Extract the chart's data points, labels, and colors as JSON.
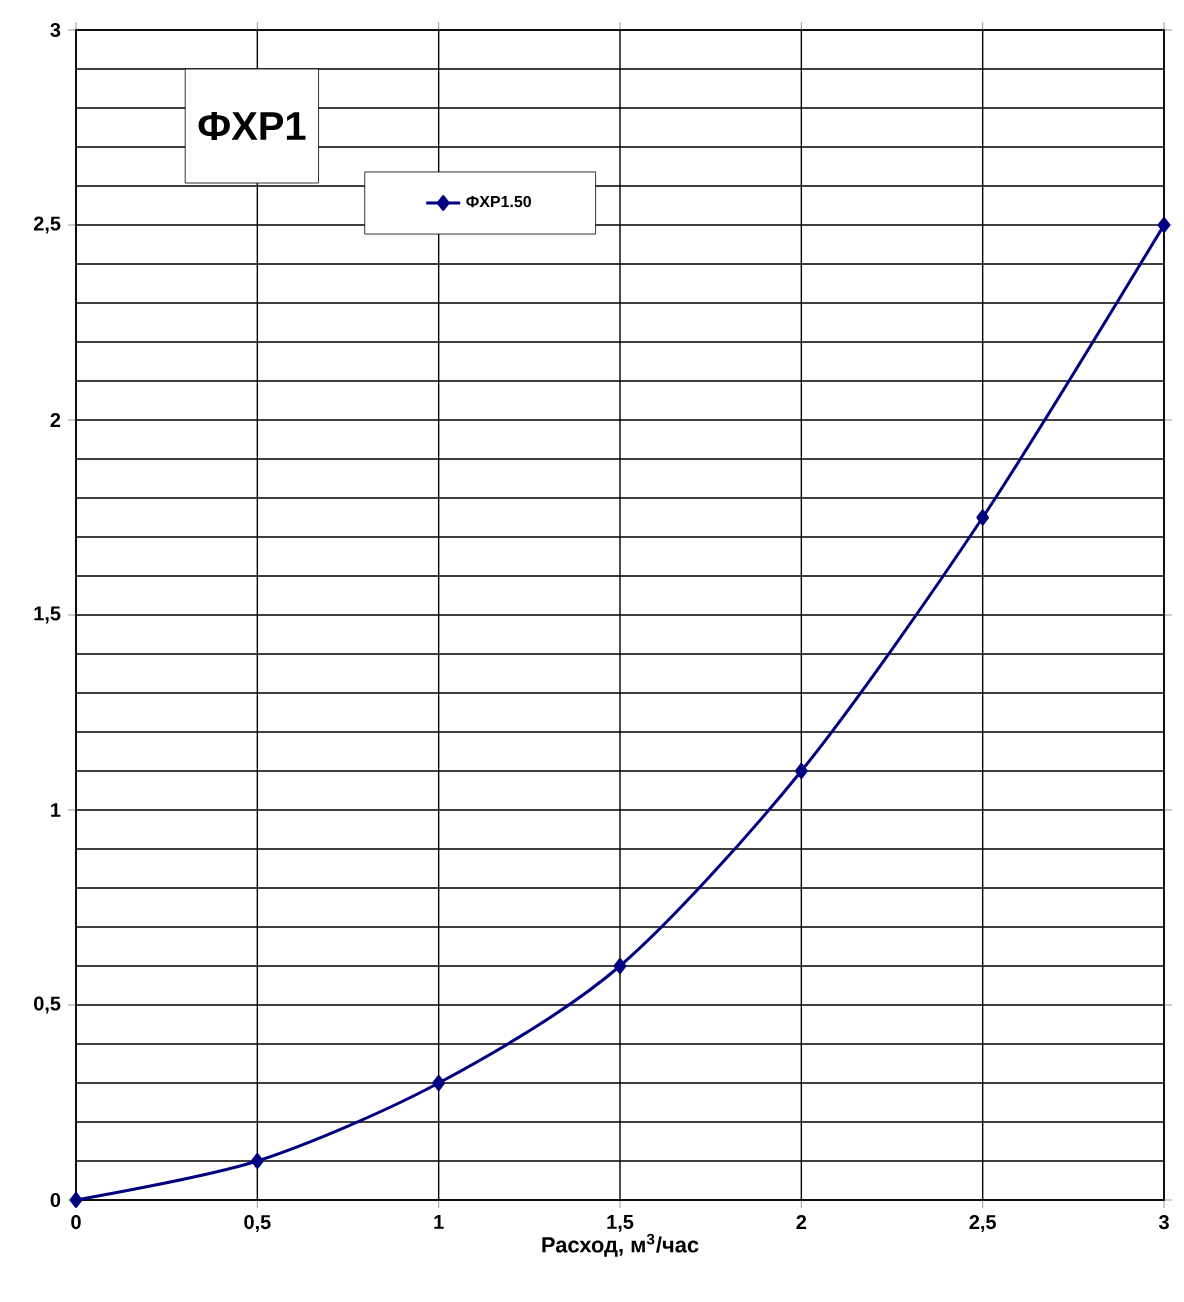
{
  "chart_data": {
    "type": "line",
    "title": "ФХР1",
    "xlabel": "Расход, м$^{3}$/час",
    "x": [
      0,
      0.5,
      1,
      1.5,
      2,
      2.5,
      3
    ],
    "series": [
      {
        "name": "ФХР1.50",
        "color": "#000080",
        "values": [
          0,
          0.1,
          0.3,
          0.6,
          1.1,
          1.75,
          2.5
        ]
      }
    ],
    "xlim": [
      0,
      3
    ],
    "ylim": [
      0,
      3
    ],
    "xticks": [
      0,
      {
        "value": 0.5,
        "label": "0,5"
      },
      1,
      {
        "value": 1.5,
        "label": "1,5"
      },
      2,
      {
        "value": 2.5,
        "label": "2,5"
      },
      3
    ],
    "yticks": [
      0,
      {
        "value": 0.5,
        "label": "0,5"
      },
      1,
      {
        "value": 1.5,
        "label": "1,5"
      },
      2,
      {
        "value": 2.5,
        "label": "2,5"
      },
      3
    ],
    "grid": true,
    "legend": "top left",
    "marker": "diamond",
    "line_style": "solid"
  }
}
